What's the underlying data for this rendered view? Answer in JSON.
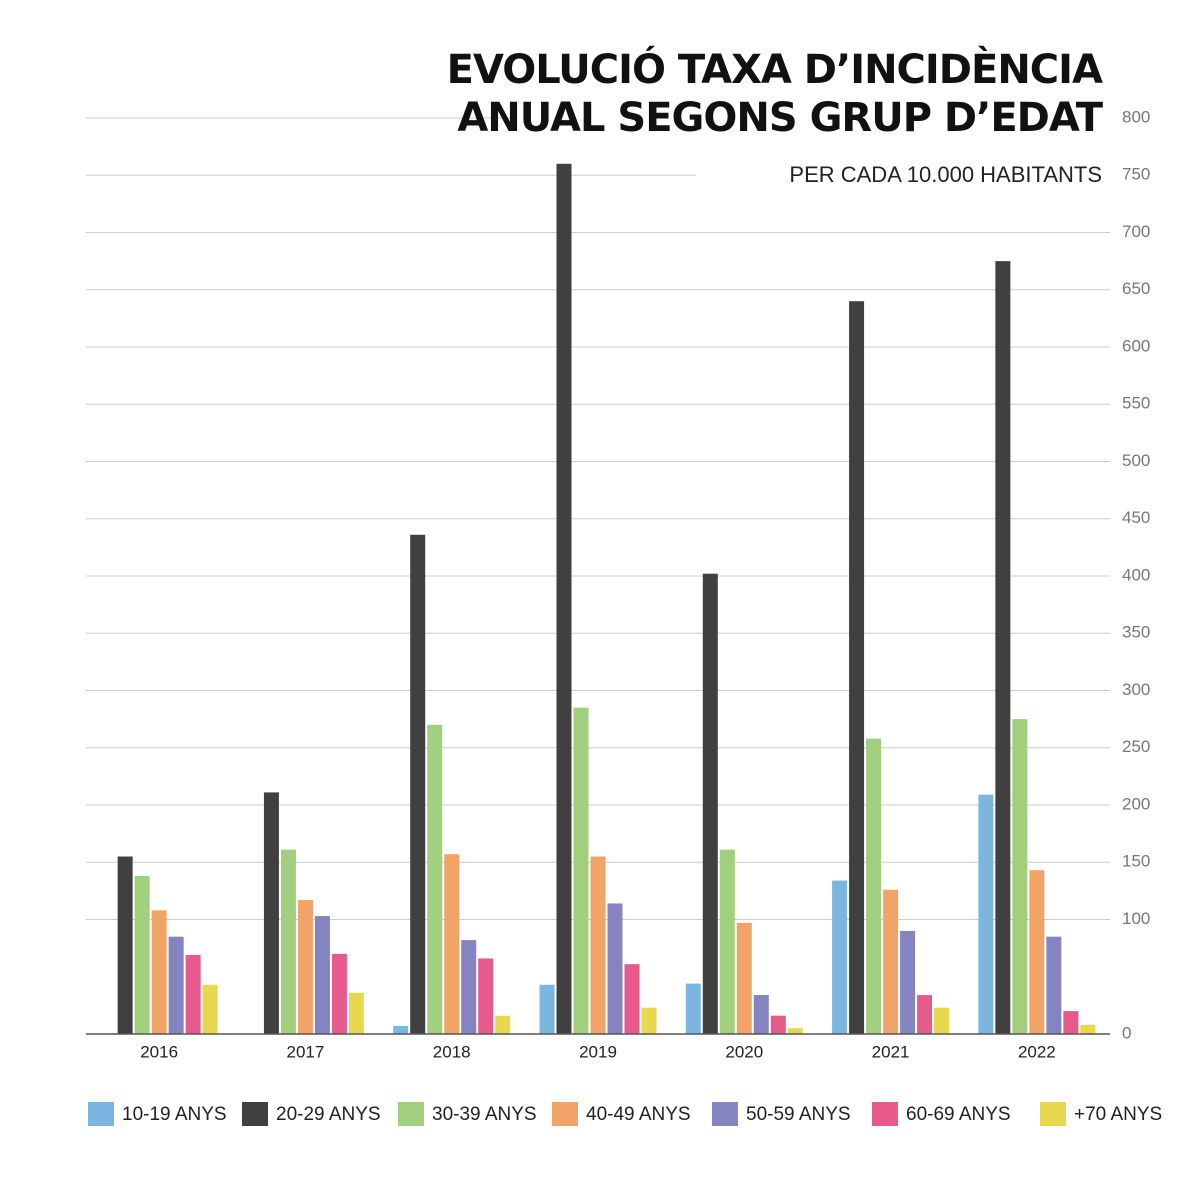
{
  "chart_data": {
    "type": "bar",
    "title": [
      "EVOLUCIÓ TAXA D’INCIDÈNCIA",
      "ANUAL SEGONS GRUP D’EDAT"
    ],
    "subtitle": "PER CADA 10.000 HABITANTS",
    "categories": [
      "2016",
      "2017",
      "2018",
      "2019",
      "2020",
      "2021",
      "2022"
    ],
    "series": [
      {
        "name": "10-19 ANYS",
        "color": "#7ab6e0",
        "values": [
          null,
          null,
          7,
          43,
          44,
          134,
          209
        ]
      },
      {
        "name": "20-29 ANYS",
        "color": "#404040",
        "values": [
          155,
          211,
          436,
          760,
          402,
          640,
          675
        ]
      },
      {
        "name": "30-39 ANYS",
        "color": "#a1cf7e",
        "values": [
          138,
          161,
          270,
          285,
          161,
          258,
          275
        ]
      },
      {
        "name": "40-49 ANYS",
        "color": "#f2a468",
        "values": [
          108,
          117,
          157,
          155,
          97,
          126,
          143
        ]
      },
      {
        "name": "50-59 ANYS",
        "color": "#8384c0",
        "values": [
          85,
          103,
          82,
          114,
          34,
          90,
          85
        ]
      },
      {
        "name": "60-69 ANYS",
        "color": "#e75b8c",
        "values": [
          69,
          70,
          66,
          61,
          16,
          34,
          20
        ]
      },
      {
        "name": "+70 ANYS",
        "color": "#e8d84e",
        "values": [
          43,
          36,
          16,
          23,
          5,
          23,
          8
        ]
      }
    ],
    "ylim": [
      0,
      800
    ],
    "yticks": [
      0,
      100,
      150,
      200,
      250,
      300,
      350,
      400,
      450,
      500,
      550,
      600,
      650,
      700,
      750,
      800
    ],
    "grid": true
  }
}
